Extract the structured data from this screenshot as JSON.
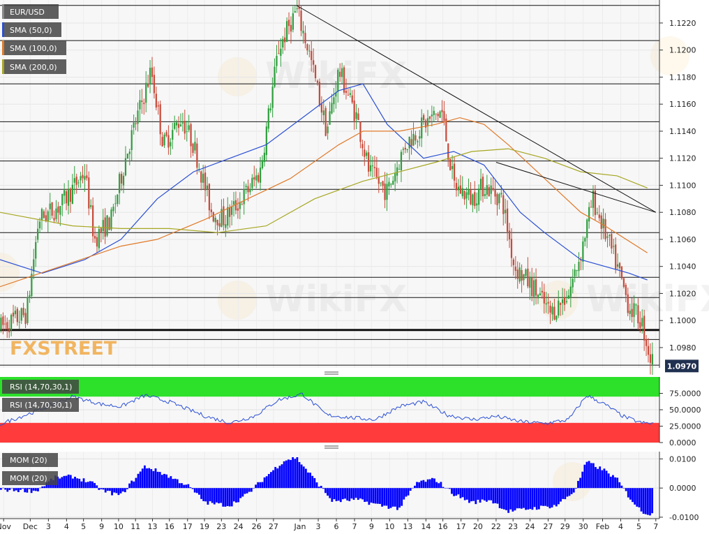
{
  "chart_data": [
    {
      "type": "candlestick",
      "symbol_label": "EUR/USD",
      "indicator_labels": [
        "SMA (50,0)",
        "SMA (100,0)",
        "SMA (200,0)"
      ],
      "colors": {
        "up": "#2f9e3e",
        "down": "#c84a3a",
        "sma50": "#2a4fd4",
        "sma100": "#e07a2a",
        "sma200": "#a6a622",
        "grid": "#e6e6e6"
      },
      "ylim": [
        1.0965,
        1.1237
      ],
      "yticks": [
        "1.1220",
        "1.1200",
        "1.1180",
        "1.1160",
        "1.1140",
        "1.1120",
        "1.1100",
        "1.1080",
        "1.1060",
        "1.1040",
        "1.1020",
        "1.1000",
        "1.0980"
      ],
      "ytick_values": [
        1.122,
        1.12,
        1.118,
        1.116,
        1.114,
        1.112,
        1.11,
        1.108,
        1.106,
        1.104,
        1.102,
        1.1,
        1.098
      ],
      "current_price_label": "1.0970",
      "current_price": 1.097,
      "horizontal_levels": [
        1.1233,
        1.1207,
        1.1175,
        1.1147,
        1.1118,
        1.1097,
        1.1065,
        1.1032,
        1.1017,
        1.0993,
        1.0986,
        1.0967
      ],
      "trendlines": [
        {
          "from": [
            2.45,
            1.1233
          ],
          "to": [
            5.42,
            1.108
          ]
        },
        {
          "from": [
            4.1,
            1.1117
          ],
          "to": [
            5.42,
            1.108
          ]
        }
      ],
      "price_path": [
        [
          0.0,
          1.0995
        ],
        [
          0.22,
          1.1005
        ],
        [
          0.32,
          1.1075
        ],
        [
          0.5,
          1.1085
        ],
        [
          0.7,
          1.111
        ],
        [
          0.78,
          1.106
        ],
        [
          0.92,
          1.1075
        ],
        [
          1.05,
          1.1125
        ],
        [
          1.25,
          1.1185
        ],
        [
          1.35,
          1.113
        ],
        [
          1.5,
          1.115
        ],
        [
          1.6,
          1.113
        ],
        [
          1.75,
          1.108
        ],
        [
          1.85,
          1.1075
        ],
        [
          2.0,
          1.109
        ],
        [
          2.15,
          1.111
        ],
        [
          2.3,
          1.12
        ],
        [
          2.45,
          1.123
        ],
        [
          2.55,
          1.12
        ],
        [
          2.7,
          1.114
        ],
        [
          2.8,
          1.1185
        ],
        [
          2.95,
          1.115
        ],
        [
          3.05,
          1.111
        ],
        [
          3.2,
          1.1095
        ],
        [
          3.35,
          1.113
        ],
        [
          3.5,
          1.1145
        ],
        [
          3.65,
          1.1155
        ],
        [
          3.75,
          1.11
        ],
        [
          3.9,
          1.109
        ],
        [
          4.0,
          1.11
        ],
        [
          4.15,
          1.109
        ],
        [
          4.25,
          1.104
        ],
        [
          4.4,
          1.1025
        ],
        [
          4.55,
          1.1005
        ],
        [
          4.7,
          1.102
        ],
        [
          4.8,
          1.105
        ],
        [
          4.9,
          1.109
        ],
        [
          5.0,
          1.1065
        ],
        [
          5.1,
          1.104
        ],
        [
          5.2,
          1.101
        ],
        [
          5.3,
          1.1
        ],
        [
          5.38,
          1.097
        ]
      ],
      "sma50": [
        [
          0,
          1.1045
        ],
        [
          0.35,
          1.1035
        ],
        [
          0.7,
          1.1045
        ],
        [
          1.0,
          1.106
        ],
        [
          1.3,
          1.109
        ],
        [
          1.6,
          1.111
        ],
        [
          1.9,
          1.112
        ],
        [
          2.2,
          1.113
        ],
        [
          2.5,
          1.115
        ],
        [
          2.8,
          1.117
        ],
        [
          3.0,
          1.1175
        ],
        [
          3.2,
          1.1145
        ],
        [
          3.5,
          1.112
        ],
        [
          3.75,
          1.1125
        ],
        [
          4.0,
          1.1115
        ],
        [
          4.3,
          1.108
        ],
        [
          4.5,
          1.1065
        ],
        [
          4.8,
          1.1045
        ],
        [
          5.0,
          1.104
        ],
        [
          5.2,
          1.1035
        ],
        [
          5.35,
          1.103
        ]
      ],
      "sma100": [
        [
          0,
          1.1025
        ],
        [
          0.5,
          1.104
        ],
        [
          1.0,
          1.1055
        ],
        [
          1.3,
          1.106
        ],
        [
          1.7,
          1.1075
        ],
        [
          2.0,
          1.1088
        ],
        [
          2.4,
          1.1105
        ],
        [
          2.8,
          1.113
        ],
        [
          3.0,
          1.114
        ],
        [
          3.3,
          1.114
        ],
        [
          3.6,
          1.1145
        ],
        [
          3.8,
          1.115
        ],
        [
          4.0,
          1.1145
        ],
        [
          4.2,
          1.113
        ],
        [
          4.5,
          1.1105
        ],
        [
          4.8,
          1.108
        ],
        [
          5.0,
          1.107
        ],
        [
          5.35,
          1.105
        ]
      ],
      "sma200": [
        [
          0,
          1.108
        ],
        [
          0.6,
          1.107
        ],
        [
          1.0,
          1.1068
        ],
        [
          1.4,
          1.1068
        ],
        [
          1.8,
          1.1065
        ],
        [
          2.2,
          1.107
        ],
        [
          2.6,
          1.109
        ],
        [
          3.0,
          1.1103
        ],
        [
          3.3,
          1.111
        ],
        [
          3.6,
          1.1117
        ],
        [
          3.9,
          1.1125
        ],
        [
          4.2,
          1.1127
        ],
        [
          4.5,
          1.112
        ],
        [
          4.8,
          1.111
        ],
        [
          5.1,
          1.1107
        ],
        [
          5.35,
          1.1098
        ]
      ]
    },
    {
      "type": "line",
      "indicator_label": "RSI (14,70,30,1)",
      "ylim": [
        0,
        100
      ],
      "yticks": [
        "75.0000",
        "50.0000",
        "25.0000",
        "0.0000"
      ],
      "ytick_values": [
        75,
        50,
        25,
        0
      ],
      "overbought": 70,
      "oversold": 30,
      "zone_colors": {
        "overbought": "#2de02a",
        "oversold": "#ff3b3b"
      },
      "line_color": "#2a4fd4",
      "points": [
        [
          0,
          28
        ],
        [
          0.3,
          48
        ],
        [
          0.6,
          70
        ],
        [
          0.85,
          58
        ],
        [
          1.0,
          55
        ],
        [
          1.2,
          72
        ],
        [
          1.4,
          62
        ],
        [
          1.7,
          40
        ],
        [
          1.9,
          30
        ],
        [
          2.1,
          40
        ],
        [
          2.3,
          65
        ],
        [
          2.5,
          74
        ],
        [
          2.7,
          42
        ],
        [
          2.9,
          38
        ],
        [
          3.1,
          35
        ],
        [
          3.3,
          55
        ],
        [
          3.5,
          62
        ],
        [
          3.7,
          42
        ],
        [
          3.9,
          35
        ],
        [
          4.1,
          40
        ],
        [
          4.3,
          32
        ],
        [
          4.5,
          29
        ],
        [
          4.7,
          35
        ],
        [
          4.85,
          72
        ],
        [
          5.0,
          58
        ],
        [
          5.15,
          40
        ],
        [
          5.3,
          30
        ],
        [
          5.38,
          29
        ]
      ]
    },
    {
      "type": "bar",
      "indicator_label": "MOM (20)",
      "ylim": [
        -0.0105,
        0.0125
      ],
      "yticks": [
        "0.0100",
        "0.0000",
        "-0.0100"
      ],
      "ytick_values": [
        0.01,
        0,
        -0.01
      ],
      "bar_color": "#0000ff",
      "profile": [
        [
          0,
          -0.0005
        ],
        [
          0.3,
          -0.001
        ],
        [
          0.45,
          0.0035
        ],
        [
          0.6,
          0.004
        ],
        [
          0.75,
          0.002
        ],
        [
          0.85,
          -0.001
        ],
        [
          1.0,
          -0.0025
        ],
        [
          1.2,
          0.0075
        ],
        [
          1.35,
          0.005
        ],
        [
          1.55,
          0.001
        ],
        [
          1.7,
          -0.005
        ],
        [
          1.9,
          -0.006
        ],
        [
          2.05,
          -0.002
        ],
        [
          2.2,
          0.004
        ],
        [
          2.35,
          0.0095
        ],
        [
          2.45,
          0.0105
        ],
        [
          2.6,
          0.003
        ],
        [
          2.75,
          -0.0045
        ],
        [
          2.95,
          -0.004
        ],
        [
          3.15,
          -0.006
        ],
        [
          3.3,
          -0.007
        ],
        [
          3.45,
          0.002
        ],
        [
          3.6,
          0.003
        ],
        [
          3.75,
          -0.002
        ],
        [
          3.9,
          -0.005
        ],
        [
          4.05,
          -0.004
        ],
        [
          4.2,
          -0.008
        ],
        [
          4.4,
          -0.007
        ],
        [
          4.6,
          -0.006
        ],
        [
          4.75,
          -0.001
        ],
        [
          4.85,
          0.009
        ],
        [
          5.0,
          0.006
        ],
        [
          5.1,
          0.003
        ],
        [
          5.2,
          -0.003
        ],
        [
          5.3,
          -0.008
        ],
        [
          5.38,
          -0.009
        ]
      ]
    }
  ],
  "x_axis": {
    "tick_labels": [
      "Nov",
      "Dec",
      "3",
      "4",
      "5",
      "9",
      "10",
      "11",
      "13",
      "16",
      "17",
      "19",
      "23",
      "24",
      "26",
      "27",
      "Jan",
      "3",
      "6",
      "7",
      "9",
      "10",
      "13",
      "14",
      "16",
      "17",
      "20",
      "22",
      "23",
      "24",
      "27",
      "29",
      "30",
      "Feb",
      "4",
      "5",
      "7"
    ],
    "tick_positions": [
      0.03,
      0.25,
      0.4,
      0.55,
      0.69,
      0.84,
      0.98,
      1.12,
      1.26,
      1.4,
      1.55,
      1.69,
      1.83,
      1.97,
      2.12,
      2.26,
      2.48,
      2.63,
      2.78,
      2.93,
      3.07,
      3.22,
      3.37,
      3.52,
      3.66,
      3.81,
      3.95,
      4.1,
      4.24,
      4.38,
      4.53,
      4.67,
      4.82,
      4.98,
      5.13,
      5.28,
      5.42
    ],
    "xlim": [
      0,
      5.45
    ]
  },
  "watermarks": [
    "FXSTREET",
    "WikiFX"
  ]
}
